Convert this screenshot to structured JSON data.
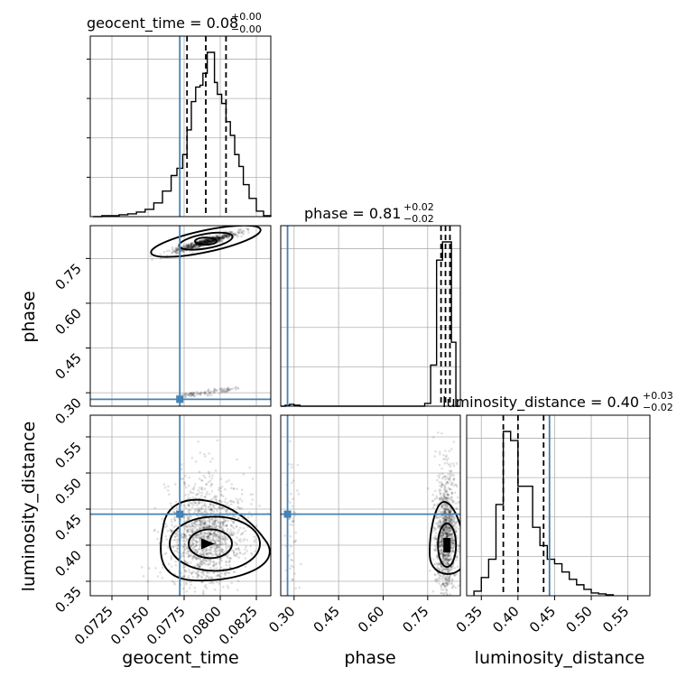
{
  "chart_data": {
    "type": "corner",
    "parameters": [
      "geocent_time",
      "phase",
      "luminosity_distance"
    ],
    "injection": {
      "geocent_time": 0.0772,
      "phase": 0.278,
      "luminosity_distance": 0.443
    },
    "panels": {
      "geocent_time": {
        "title": "geocent_time = 0.08",
        "title_sup": "+0.00",
        "title_sub": "−0.00",
        "xlim": [
          0.071,
          0.0835
        ],
        "ticks": [
          0.0725,
          0.075,
          0.0775,
          0.08,
          0.0825
        ],
        "tick_labels": [
          "0.0725",
          "0.0750",
          "0.0775",
          "0.0800",
          "0.0825"
        ],
        "quantiles": [
          0.0777,
          0.079,
          0.0804
        ],
        "hist_edges": [
          0.0712,
          0.0718,
          0.0724,
          0.073,
          0.0736,
          0.0742,
          0.0748,
          0.0754,
          0.076,
          0.0766,
          0.077,
          0.0774,
          0.0777,
          0.078,
          0.0783,
          0.0786,
          0.0788,
          0.0791,
          0.0793,
          0.0796,
          0.0798,
          0.0801,
          0.0804,
          0.0807,
          0.081,
          0.0813,
          0.0816,
          0.082,
          0.0825,
          0.083,
          0.0835
        ],
        "hist_counts": [
          0,
          1,
          1,
          2,
          3,
          5,
          8,
          15,
          28,
          45,
          53,
          68,
          95,
          126,
          142,
          144,
          157,
          180,
          180,
          147,
          134,
          124,
          104,
          89,
          68,
          55,
          35,
          20,
          6,
          1
        ]
      },
      "phase": {
        "title": "phase = 0.81",
        "title_sup": "+0.02",
        "title_sub": "−0.02",
        "xlim": [
          0.255,
          0.86
        ],
        "ticks": [
          0.3,
          0.45,
          0.6,
          0.75
        ],
        "tick_labels": [
          "0.30",
          "0.45",
          "0.60",
          "0.75"
        ],
        "quantiles": [
          0.795,
          0.81,
          0.825
        ],
        "hist_edges": [
          0.255,
          0.27,
          0.285,
          0.3,
          0.32,
          0.34,
          0.74,
          0.76,
          0.78,
          0.8,
          0.815,
          0.83,
          0.845,
          0.86
        ],
        "hist_counts": [
          0,
          1,
          2,
          1,
          0,
          0,
          3,
          45,
          160,
          180,
          180,
          70,
          0
        ]
      },
      "luminosity_distance": {
        "title": "luminosity_distance = 0.40",
        "title_sup": "+0.03",
        "title_sub": "−0.02",
        "xlim": [
          0.33,
          0.58
        ],
        "ticks": [
          0.35,
          0.4,
          0.45,
          0.5,
          0.55
        ],
        "tick_labels": [
          "0.35",
          "0.40",
          "0.45",
          "0.50",
          "0.55"
        ],
        "quantiles": [
          0.38,
          0.4,
          0.435
        ],
        "hist_edges": [
          0.34,
          0.35,
          0.36,
          0.37,
          0.38,
          0.39,
          0.4,
          0.41,
          0.42,
          0.43,
          0.44,
          0.45,
          0.46,
          0.47,
          0.48,
          0.49,
          0.5,
          0.51,
          0.52,
          0.53
        ],
        "hist_counts": [
          5,
          20,
          40,
          100,
          180,
          170,
          120,
          120,
          75,
          55,
          40,
          35,
          26,
          18,
          12,
          7,
          3,
          2,
          1
        ]
      }
    },
    "row_labels": [
      "phase",
      "luminosity_distance"
    ],
    "col_labels": [
      "geocent_time",
      "phase",
      "luminosity_distance"
    ],
    "contour_levels": [
      "inner",
      "middle",
      "outer"
    ],
    "grid": true,
    "colors": {
      "truth": "#4682b4",
      "hist": "#000000",
      "points": "#000000"
    }
  }
}
